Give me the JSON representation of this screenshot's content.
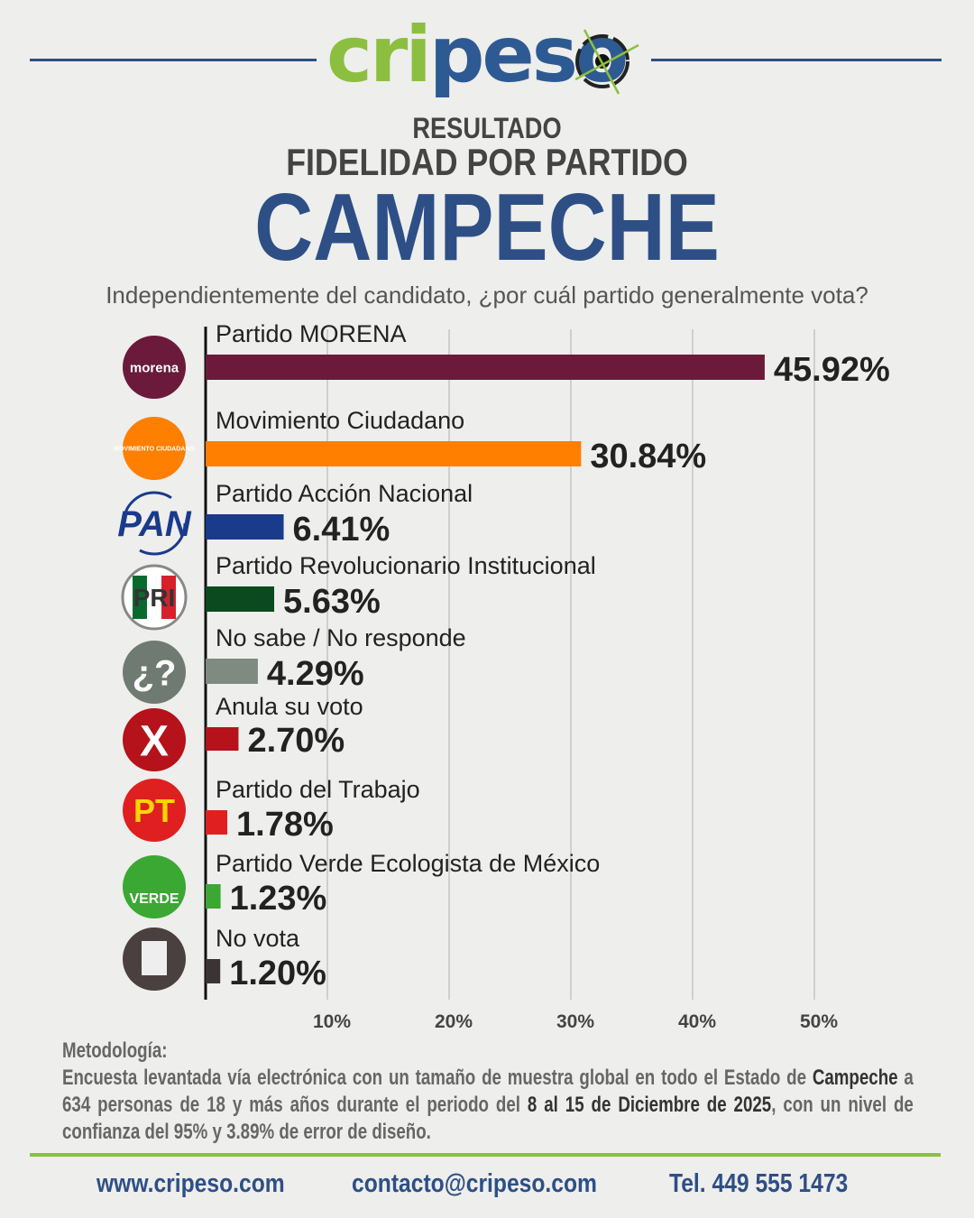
{
  "brand": {
    "logo_text_green": "cri",
    "logo_text_blue": "peso",
    "colors": {
      "green": "#8cbf3f",
      "blue": "#2e5a93"
    }
  },
  "header": {
    "line1": "RESULTADO",
    "line2": "FIDELIDAD POR PARTIDO",
    "line3": "CAMPECHE"
  },
  "question": "Independientemente del candidato, ¿por cuál partido generalmente vota?",
  "chart_data": {
    "type": "bar",
    "orientation": "horizontal",
    "title": "",
    "xlabel": "",
    "ylabel": "",
    "xlim": [
      0,
      50
    ],
    "xticks": [
      "10%",
      "20%",
      "30%",
      "40%",
      "50%"
    ],
    "grid": true,
    "categories": [
      "Partido MORENA",
      "Movimiento Ciudadano",
      "Partido Acción Nacional",
      "Partido Revolucionario Institucional",
      "No sabe / No responde",
      "Anula su voto",
      "Partido del Trabajo",
      "Partido Verde Ecologista de México",
      "No vota"
    ],
    "values": [
      45.92,
      30.84,
      6.41,
      5.63,
      4.29,
      2.7,
      1.78,
      1.23,
      1.2
    ],
    "labels": [
      "45.92%",
      "30.84%",
      "6.41%",
      "5.63%",
      "4.29%",
      "2.70%",
      "1.78%",
      "1.23%",
      "1.20%"
    ],
    "colors": [
      "#6b1a3b",
      "#ff7f00",
      "#1a3a8c",
      "#0a4a1e",
      "#7f8a80",
      "#b5121b",
      "#e02020",
      "#3aa832",
      "#3c3434"
    ],
    "icons": [
      "morena-logo",
      "mc-logo",
      "pan-logo",
      "pri-logo",
      "question-icon",
      "x-icon",
      "pt-logo",
      "verde-logo",
      "ballot-icon"
    ],
    "icon_text": [
      "morena",
      "MOVIMIENTO CIUDADANO",
      "PAN",
      "PRI",
      "¿?",
      "X",
      "PT",
      "VERDE",
      ""
    ]
  },
  "methodology": {
    "title": "Metodología:",
    "text_a": "Encuesta levantada vía electrónica con un tamaño de muestra global en todo el Estado de ",
    "bold_a": "Campeche",
    "text_b": " a 634 personas de 18 y más años durante el periodo del ",
    "bold_b": "8 al 15 de Diciembre de 2025",
    "text_c": ", con un nivel de confianza del 95% y 3.89% de error de diseño."
  },
  "footer": {
    "web": "www.cripeso.com",
    "email": "contacto@cripeso.com",
    "phone": "Tel. 449 555 1473"
  }
}
